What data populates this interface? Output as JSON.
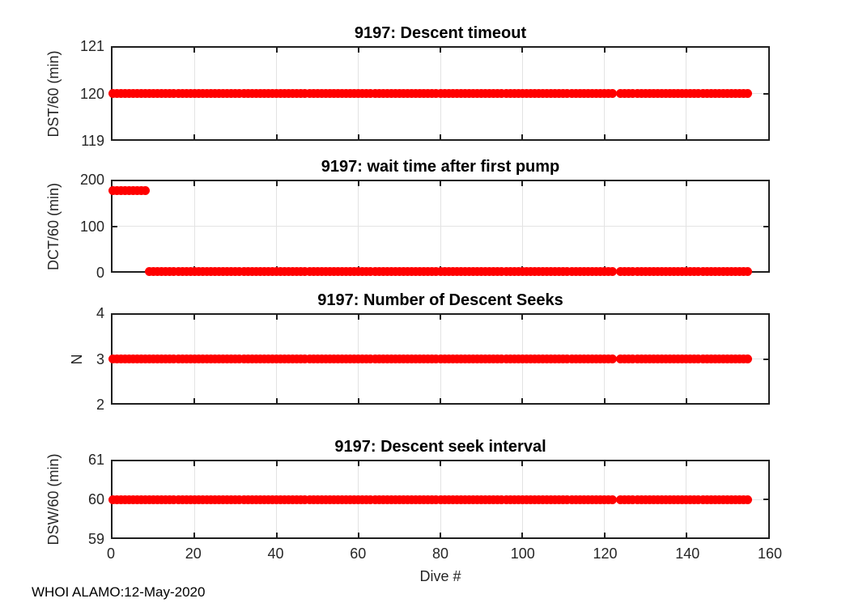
{
  "colors": {
    "marker": "#ff0000",
    "grid": "#e3e3e3",
    "axis": "#1f1f1f",
    "tick_label": "#262626",
    "title": "#000000"
  },
  "x_axis": {
    "label": "Dive #",
    "lim": [
      0,
      160
    ],
    "ticks": [
      0,
      20,
      40,
      60,
      80,
      100,
      120,
      140,
      160
    ]
  },
  "footer": "WHOI ALAMO:12-May-2020",
  "chart_data": [
    {
      "type": "scatter",
      "title": "9197: Descent timeout",
      "ylabel": "DST/60 (min)",
      "ylim": [
        119,
        121
      ],
      "yticks": [
        119,
        120,
        121
      ],
      "grid": true,
      "marker": "filled-circle",
      "xlabel": "Dive #",
      "series": [
        {
          "name": "DST/60",
          "value_by_segment": [
            {
              "x_start": 0,
              "x_end": 155,
              "y": 120
            }
          ]
        }
      ],
      "missing_x": [
        123
      ]
    },
    {
      "type": "scatter",
      "title": "9197: wait time after first pump",
      "ylabel": "DCT/60 (min)",
      "ylim": [
        0,
        200
      ],
      "yticks": [
        0,
        100,
        200
      ],
      "grid": true,
      "marker": "filled-circle",
      "xlabel": "Dive #",
      "series": [
        {
          "name": "DCT/60",
          "value_by_segment": [
            {
              "x_start": 0,
              "x_end": 8,
              "y": 180
            },
            {
              "x_start": 9,
              "x_end": 155,
              "y": 0
            }
          ]
        }
      ],
      "missing_x": [
        123
      ]
    },
    {
      "type": "scatter",
      "title": "9197: Number of Descent Seeks",
      "ylabel": "N",
      "ylim": [
        2,
        4
      ],
      "yticks": [
        2,
        3,
        4
      ],
      "grid": true,
      "marker": "filled-circle",
      "xlabel": "Dive #",
      "series": [
        {
          "name": "N",
          "value_by_segment": [
            {
              "x_start": 0,
              "x_end": 155,
              "y": 3
            }
          ]
        }
      ],
      "missing_x": [
        123
      ]
    },
    {
      "type": "scatter",
      "title": "9197: Descent seek interval",
      "ylabel": "DSW/60 (min)",
      "ylim": [
        59,
        61
      ],
      "yticks": [
        59,
        60,
        61
      ],
      "grid": true,
      "marker": "filled-circle",
      "xlabel": "Dive #",
      "series": [
        {
          "name": "DSW/60",
          "value_by_segment": [
            {
              "x_start": 0,
              "x_end": 155,
              "y": 60
            }
          ]
        }
      ],
      "missing_x": [
        123
      ]
    }
  ]
}
